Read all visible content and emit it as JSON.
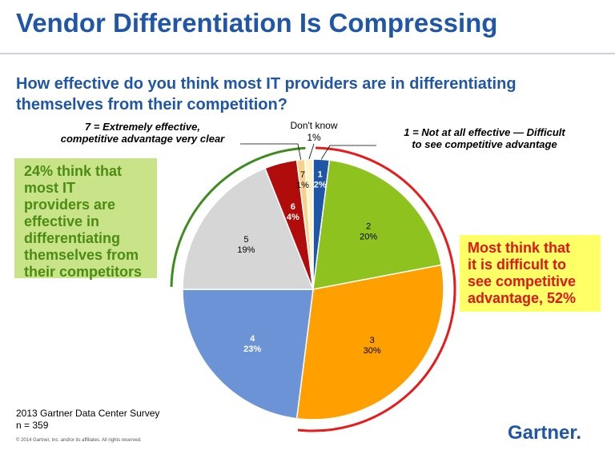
{
  "title": "Vendor Differentiation Is Compressing",
  "subtitle": "How effective do you think most IT providers are in differentiating themselves from their competition?",
  "callouts": {
    "extreme_line1": "7 = Extremely effective,",
    "extreme_line2": "competitive advantage very clear",
    "not_at_all_line1": "1 = Not at all effective — Difficult",
    "not_at_all_line2": "to see competitive advantage",
    "dont_know_line1": "Don't know",
    "dont_know_line2": "1%"
  },
  "green_box": {
    "lines": [
      "24% think that",
      "most IT",
      "providers are",
      "effective in",
      "differentiating",
      "themselves from",
      "their competitors"
    ]
  },
  "yellow_box": {
    "lines": [
      "Most think that",
      "it is difficult to",
      "see competitive",
      "advantage, 52%"
    ]
  },
  "footer": {
    "line1": "2013 Gartner Data Center Survey",
    "line2": "n = 359"
  },
  "copyright": "© 2014 Gartner, Inc. and/or its affiliates. All rights reserved.",
  "logo": "Gartner",
  "colors": {
    "accent": "#1f56a8",
    "green_arc": "#3f8c1e",
    "red_arc": "#e81a1a"
  },
  "chart_data": {
    "type": "pie",
    "slices": [
      {
        "label": "1",
        "value": 2,
        "value_label": "2%",
        "color": "#1f56a8",
        "text_color": "#ffffff"
      },
      {
        "label": "2",
        "value": 20,
        "value_label": "20%",
        "color": "#8dc21f",
        "text_color": "#000000"
      },
      {
        "label": "3",
        "value": 30,
        "value_label": "30%",
        "color": "#ff9f00",
        "text_color": "#000000"
      },
      {
        "label": "4",
        "value": 23,
        "value_label": "23%",
        "color": "#6b93d6",
        "text_color": "#ffffff"
      },
      {
        "label": "5",
        "value": 19,
        "value_label": "19%",
        "color": "#d6d6d6",
        "text_color": "#000000"
      },
      {
        "label": "6",
        "value": 4,
        "value_label": "4%",
        "color": "#b00c0c",
        "text_color": "#ffffff"
      },
      {
        "label": "7",
        "value": 1,
        "value_label": "1%",
        "color": "#f6d28c",
        "text_color": "#000000"
      },
      {
        "label": "Don't know",
        "value": 1,
        "value_label": "1%",
        "color": "#fff3c8",
        "text_color": "#000000"
      }
    ],
    "start": "12 o'clock",
    "direction": "clockwise"
  }
}
